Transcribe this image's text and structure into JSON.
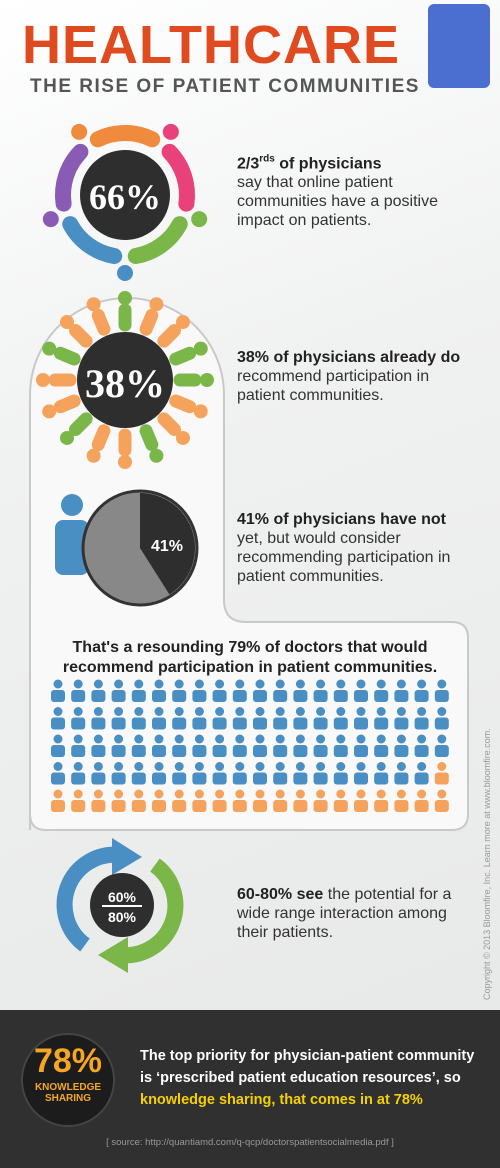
{
  "header": {
    "title": "HEALTHCARE",
    "subtitle": "THE RISE OF PATIENT COMMUNITIES"
  },
  "stats": [
    {
      "value_label": "66%",
      "lead": "2/3",
      "sup": "rds",
      "lead_rest": " of physicians",
      "text": "say that online patient communities have a positive impact on patients."
    },
    {
      "value_label": "38%",
      "lead": "38% of physicians already do",
      "text": "recommend participation in patient communities."
    },
    {
      "value": 41,
      "value_label": "41%",
      "lead": "41% of physicians have not",
      "text": "yet, but would consider recommending participation in patient communities."
    }
  ],
  "summary": {
    "value": 79,
    "text": "That's a resounding 79% of doctors that would recommend participation in patient communities."
  },
  "range": {
    "top": "60%",
    "bottom": "80%",
    "lead": "60-80% see",
    "text": "the potential for a wide range interaction among their patients."
  },
  "footer": {
    "value_label": "78%",
    "badge": "KNOWLEDGE SHARING",
    "text": "The top priority for physician-patient community is ‘prescribed patient education resources’, so",
    "highlight": "knowledge sharing, that comes in at 78%",
    "source": "[ source: http://quantiamd.com/q-qcp/doctorspatientsocialmedia.pdf ]"
  },
  "copyright": "Copyright © 2013 Bloomfire, Inc. Learn more at www.bloomfire.com."
}
